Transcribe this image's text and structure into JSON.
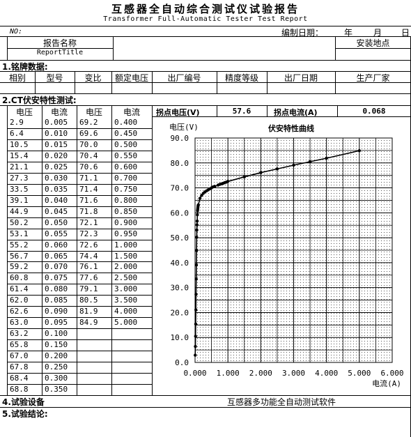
{
  "header": {
    "title_cn": "互感器全自动综合测试仪试验报告",
    "title_en": "Transformer Full-Automatic Tester Test Report",
    "no_label": "NO:",
    "date_label": "编制日期：",
    "year": "年",
    "month": "月",
    "day": "日"
  },
  "report": {
    "name_label": "报告名称",
    "name_en": "ReportTitle",
    "site_label": "安装地点"
  },
  "nameplate": {
    "section": "1.铭牌数据:",
    "columns": [
      "相别",
      "型号",
      "变比",
      "额定电压",
      "出厂编号",
      "精度等级",
      "出厂日期",
      "生产厂家"
    ]
  },
  "ct": {
    "section": "2.CT伏安特性测试:",
    "headers": [
      "电压",
      "电流",
      "电压",
      "电流"
    ],
    "knee_voltage_label": "拐点电压(V)",
    "knee_voltage": "57.6",
    "knee_current_label": "拐点电流(A)",
    "knee_current": "0.068",
    "rows": [
      [
        "2.9",
        "0.005",
        "69.2",
        "0.400"
      ],
      [
        "6.4",
        "0.010",
        "69.6",
        "0.450"
      ],
      [
        "10.5",
        "0.015",
        "70.0",
        "0.500"
      ],
      [
        "15.4",
        "0.020",
        "70.4",
        "0.550"
      ],
      [
        "21.1",
        "0.025",
        "70.6",
        "0.600"
      ],
      [
        "27.3",
        "0.030",
        "71.1",
        "0.700"
      ],
      [
        "33.5",
        "0.035",
        "71.4",
        "0.750"
      ],
      [
        "39.1",
        "0.040",
        "71.6",
        "0.800"
      ],
      [
        "44.9",
        "0.045",
        "71.8",
        "0.850"
      ],
      [
        "50.2",
        "0.050",
        "72.1",
        "0.900"
      ],
      [
        "53.1",
        "0.055",
        "72.3",
        "0.950"
      ],
      [
        "55.2",
        "0.060",
        "72.6",
        "1.000"
      ],
      [
        "56.7",
        "0.065",
        "74.4",
        "1.500"
      ],
      [
        "59.2",
        "0.070",
        "76.1",
        "2.000"
      ],
      [
        "60.8",
        "0.075",
        "77.6",
        "2.500"
      ],
      [
        "61.4",
        "0.080",
        "79.1",
        "3.000"
      ],
      [
        "62.0",
        "0.085",
        "80.5",
        "3.500"
      ],
      [
        "62.6",
        "0.090",
        "81.9",
        "4.000"
      ],
      [
        "63.0",
        "0.095",
        "84.9",
        "5.000"
      ],
      [
        "63.2",
        "0.100",
        "",
        ""
      ],
      [
        "65.8",
        "0.150",
        "",
        ""
      ],
      [
        "67.0",
        "0.200",
        "",
        ""
      ],
      [
        "67.8",
        "0.250",
        "",
        ""
      ],
      [
        "68.4",
        "0.300",
        "",
        ""
      ],
      [
        "68.8",
        "0.350",
        "",
        ""
      ]
    ]
  },
  "chart_data": {
    "type": "scatter",
    "title": "伏安特性曲线",
    "ylabel": "电压(V)",
    "xlabel": "电流(A)",
    "xlim": [
      0,
      6
    ],
    "ylim": [
      0,
      90
    ],
    "xticks": [
      "0.000",
      "1.000",
      "2.000",
      "3.000",
      "4.000",
      "5.000",
      "6.000"
    ],
    "yticks": [
      "0.0",
      "10.0",
      "20.0",
      "30.0",
      "40.0",
      "50.0",
      "60.0",
      "70.0",
      "80.0",
      "90.0"
    ],
    "grid": true,
    "x": [
      0.005,
      0.01,
      0.015,
      0.02,
      0.025,
      0.03,
      0.035,
      0.04,
      0.045,
      0.05,
      0.055,
      0.06,
      0.065,
      0.07,
      0.075,
      0.08,
      0.085,
      0.09,
      0.095,
      0.1,
      0.15,
      0.2,
      0.25,
      0.3,
      0.35,
      0.4,
      0.45,
      0.5,
      0.55,
      0.6,
      0.7,
      0.75,
      0.8,
      0.85,
      0.9,
      0.95,
      1.0,
      1.5,
      2.0,
      2.5,
      3.0,
      3.5,
      4.0,
      5.0
    ],
    "y": [
      2.9,
      6.4,
      10.5,
      15.4,
      21.1,
      27.3,
      33.5,
      39.1,
      44.9,
      50.2,
      53.1,
      55.2,
      56.7,
      59.2,
      60.8,
      61.4,
      62.0,
      62.6,
      63.0,
      63.2,
      65.8,
      67.0,
      67.8,
      68.4,
      68.8,
      69.2,
      69.6,
      70.0,
      70.4,
      70.6,
      71.1,
      71.4,
      71.6,
      71.8,
      72.1,
      72.3,
      72.6,
      74.4,
      76.1,
      77.6,
      79.1,
      80.5,
      81.9,
      84.9
    ]
  },
  "equipment": {
    "section": "4.试验设备",
    "value": "互感器多功能全自动测试软件"
  },
  "conclusion": {
    "section": "5.试验结论:"
  }
}
